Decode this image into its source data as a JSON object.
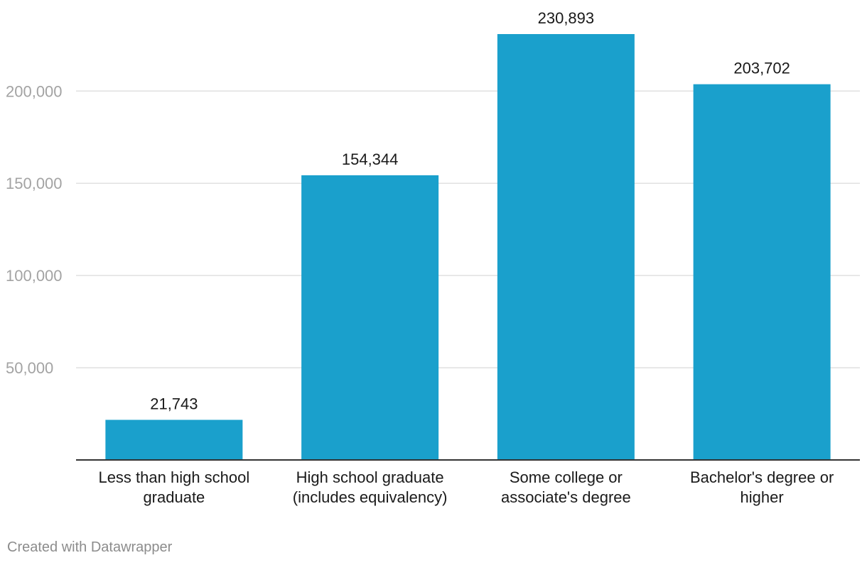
{
  "chart_data": {
    "type": "bar",
    "title": "",
    "xlabel": "",
    "ylabel": "",
    "categories": [
      [
        "Less than high school",
        "graduate"
      ],
      [
        "High school graduate",
        "(includes equivalency)"
      ],
      [
        "Some college or",
        "associate's degree"
      ],
      [
        "Bachelor's degree or",
        "higher"
      ]
    ],
    "values": [
      21743,
      154344,
      230893,
      203702
    ],
    "value_labels": [
      "21,743",
      "154,344",
      "230,893",
      "203,702"
    ],
    "yticks": [
      50000,
      100000,
      150000,
      200000
    ],
    "ytick_labels": [
      "50,000",
      "100,000",
      "150,000",
      "200,000"
    ],
    "ylim": [
      0,
      230893
    ],
    "grid": true,
    "bar_color": "#1aa0cc"
  },
  "footer": {
    "credit": "Created with Datawrapper"
  }
}
